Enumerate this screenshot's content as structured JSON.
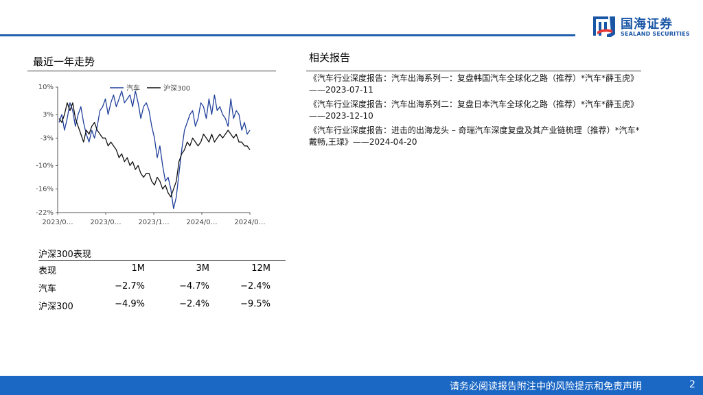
{
  "header": {
    "brand_cn": "国海证券",
    "brand_en": "SEALAND SECURITIES",
    "brand_color": "#1a56a6"
  },
  "trend_section": {
    "title": "最近一年走势"
  },
  "chart_data": {
    "type": "line",
    "y_ticks": [
      "10%",
      "3%",
      "-3%",
      "-10%",
      "-16%",
      "-22%"
    ],
    "x_ticks": [
      "2023/0…",
      "2023/0…",
      "2023/1…",
      "2024/0…",
      "2024/0…"
    ],
    "ylim": [
      -22,
      10
    ],
    "legend_placement": "top",
    "series": [
      {
        "name": "汽车",
        "color": "#1f3f9a",
        "values": [
          1,
          3,
          -1,
          2,
          6,
          4,
          0,
          3,
          5,
          1,
          -2,
          -4,
          -1,
          -3,
          0,
          4,
          5,
          7,
          3,
          6,
          8,
          5,
          7,
          9,
          6,
          7,
          8,
          5,
          9,
          6,
          2,
          5,
          6,
          4,
          0,
          -3,
          -8,
          -5,
          -10,
          -14,
          -13,
          -16,
          -21,
          -18,
          -12,
          -6,
          -1,
          1,
          3,
          4,
          0,
          2,
          6,
          5,
          2,
          7,
          3,
          8,
          4,
          5,
          3,
          2,
          0,
          7,
          2,
          4,
          3,
          -1,
          1,
          -2,
          -1
        ]
      },
      {
        "name": "沪深300",
        "color": "#111111",
        "values": [
          2,
          1,
          3,
          6,
          4,
          6,
          2,
          0,
          -2,
          -4,
          -1,
          -2,
          0,
          1,
          -1,
          -2,
          -3,
          -3,
          -5,
          -4,
          -5,
          -6,
          -8,
          -7,
          -9,
          -8,
          -10,
          -9,
          -11,
          -10,
          -12,
          -13,
          -12,
          -12,
          -14,
          -15,
          -13,
          -14,
          -16,
          -15,
          -17,
          -18,
          -16,
          -14,
          -9,
          -7,
          -6,
          -4,
          -5,
          -3,
          -4,
          -5,
          -4,
          -2,
          -3,
          -4,
          -2,
          -4,
          -3,
          -2,
          -3,
          -2,
          -1,
          -2,
          -3,
          -2,
          -4,
          -4,
          -5,
          -5,
          -6
        ]
      }
    ]
  },
  "perf_section": {
    "title": "沪深300表现",
    "headers": [
      "表现",
      "1M",
      "3M",
      "12M"
    ],
    "rows": [
      [
        "汽车",
        "−2.7%",
        "−4.7%",
        "−2.4%"
      ],
      [
        "沪深300",
        "−4.9%",
        "−2.4%",
        "−9.5%"
      ]
    ]
  },
  "reports_section": {
    "title": "相关报告",
    "items": [
      "《汽车行业深度报告：汽车出海系列一：复盘韩国汽车全球化之路（推荐）*汽车*薛玉虎》——2023-07-11",
      "《汽车行业深度报告：汽车出海系列二：复盘日本汽车全球化之路（推荐）*汽车*薛玉虎》——2023-12-10",
      "《汽车行业深度报告：进击的出海龙头 – 奇瑞汽车深度复盘及其产业链梳理（推荐）*汽车*戴畅,王琭》——2024-04-20"
    ]
  },
  "footer": {
    "disclaimer": "请务必阅读报告附注中的风险提示和免责声明",
    "page_number": "2"
  }
}
